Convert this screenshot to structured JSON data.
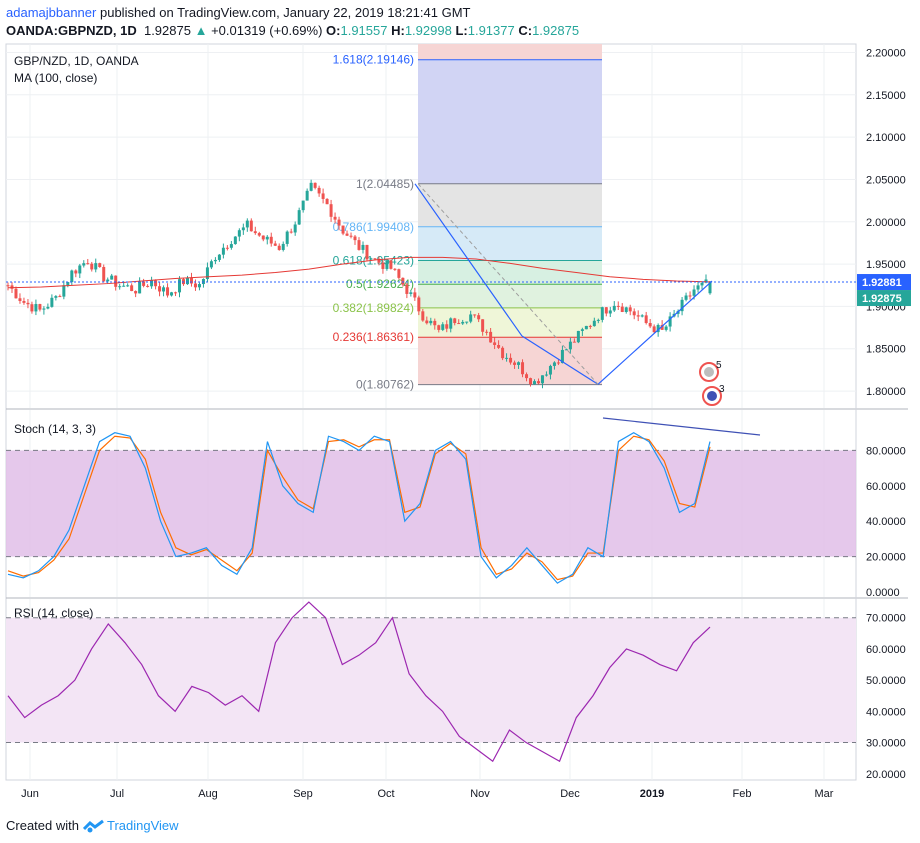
{
  "header": {
    "author": "adamajbbanner",
    "published_text": "published on TradingView.com, January 22, 2019 18:21:41 GMT",
    "symbol": "OANDA:GBPNZD, 1D",
    "last": "1.92875",
    "arrow": "▲",
    "change": "+0.01319 (+0.69%)",
    "open_label": "O:",
    "open": "1.91557",
    "high_label": "H:",
    "high": "1.92998",
    "low_label": "L:",
    "low": "1.91377",
    "close_label": "C:",
    "close": "1.92875"
  },
  "footer": {
    "created_with": "Created with",
    "brand": "TradingView"
  },
  "colors": {
    "up": "#26a69a",
    "down": "#ef5350",
    "ma": "#e53935",
    "stoch_k": "#2196f3",
    "stoch_d": "#ff6d00",
    "rsi": "#9c27b0",
    "stoch_band": "#e1bee7",
    "rsi_band": "#f3e5f5",
    "fib_line": "#2962ff",
    "price_label_bg": "#2962ff",
    "close_label_bg": "#26a69a"
  },
  "chart_data": [
    {
      "type": "candlestick",
      "title": "GBP/NZD, 1D, OANDA",
      "indicator": "MA (100, close)",
      "ylim": [
        1.78,
        2.21
      ],
      "y_ticks": [
        "2.20000",
        "2.15000",
        "2.10000",
        "2.05000",
        "2.00000",
        "1.95000",
        "1.90000",
        "1.85000",
        "1.80000"
      ],
      "x_ticks": [
        "Jun",
        "Jul",
        "Aug",
        "Sep",
        "Oct",
        "Nov",
        "Dec",
        "2019",
        "Feb",
        "Mar"
      ],
      "price_line": "1.92881",
      "last_close_label": "1.92875",
      "close_path": [
        1.925,
        1.905,
        1.895,
        1.91,
        1.94,
        1.955,
        1.935,
        1.925,
        1.92,
        1.93,
        1.915,
        1.93,
        1.925,
        1.96,
        1.98,
        1.995,
        1.98,
        1.97,
        2.0,
        2.04,
        2.02,
        1.99,
        1.97,
        1.955,
        1.945,
        1.92,
        1.89,
        1.87,
        1.885,
        1.89,
        1.87,
        1.845,
        1.83,
        1.81,
        1.83,
        1.85,
        1.87,
        1.89,
        1.905,
        1.895,
        1.88,
        1.87,
        1.895,
        1.92,
        1.928
      ],
      "ma100": [
        1.922,
        1.923,
        1.925,
        1.927,
        1.93,
        1.933,
        1.935,
        1.937,
        1.94,
        1.944,
        1.95,
        1.955,
        1.958,
        1.958,
        1.956,
        1.951,
        1.945,
        1.94,
        1.935,
        1.932,
        1.93,
        1.929
      ],
      "fibonacci": [
        {
          "label": "1.618(2.19146)",
          "level": 2.19146,
          "color": "#2962ff"
        },
        {
          "label": "1(2.04485)",
          "level": 2.04485,
          "color": "#787b86"
        },
        {
          "label": "0.786(1.99408)",
          "level": 1.99408,
          "color": "#64b5f6"
        },
        {
          "label": "0.618(1.95423)",
          "level": 1.95423,
          "color": "#26a69a"
        },
        {
          "label": "0.5(1.92624)",
          "level": 1.92624,
          "color": "#4caf50"
        },
        {
          "label": "0.382(1.89824)",
          "level": 1.89824,
          "color": "#8bc34a"
        },
        {
          "label": "0.236(1.86361)",
          "level": 1.86361,
          "color": "#e53935"
        },
        {
          "label": "0(1.80762)",
          "level": 1.80762,
          "color": "#787b86"
        }
      ],
      "badges": [
        "5",
        "3"
      ]
    },
    {
      "type": "line",
      "title": "Stoch (14, 3, 3)",
      "ylim": [
        0,
        100
      ],
      "y_ticks": [
        "80.0000",
        "60.0000",
        "40.0000",
        "20.0000",
        "0.0000"
      ],
      "band": [
        20,
        80
      ],
      "k": [
        10,
        8,
        12,
        20,
        35,
        60,
        85,
        90,
        88,
        70,
        40,
        20,
        22,
        25,
        15,
        10,
        25,
        85,
        60,
        50,
        45,
        88,
        85,
        80,
        88,
        85,
        40,
        50,
        80,
        85,
        75,
        20,
        8,
        15,
        25,
        15,
        5,
        10,
        25,
        20,
        85,
        90,
        85,
        70,
        45,
        50,
        85
      ],
      "d": [
        12,
        9,
        11,
        18,
        30,
        55,
        80,
        88,
        87,
        75,
        45,
        25,
        21,
        24,
        18,
        12,
        22,
        80,
        65,
        52,
        47,
        85,
        86,
        82,
        86,
        86,
        45,
        48,
        78,
        84,
        78,
        25,
        10,
        13,
        22,
        17,
        7,
        9,
        22,
        22,
        80,
        88,
        86,
        74,
        50,
        48,
        82
      ]
    },
    {
      "type": "line",
      "title": "RSI (14, close)",
      "ylim": [
        18,
        76
      ],
      "y_ticks": [
        "70.0000",
        "60.0000",
        "50.0000",
        "40.0000",
        "30.0000",
        "20.0000"
      ],
      "band": [
        30,
        70
      ],
      "values": [
        45,
        38,
        42,
        45,
        50,
        60,
        68,
        62,
        55,
        45,
        40,
        48,
        46,
        42,
        45,
        40,
        62,
        70,
        75,
        70,
        55,
        58,
        62,
        70,
        52,
        45,
        40,
        32,
        28,
        24,
        34,
        30,
        27,
        24,
        38,
        45,
        54,
        60,
        58,
        55,
        53,
        62,
        67
      ]
    }
  ]
}
